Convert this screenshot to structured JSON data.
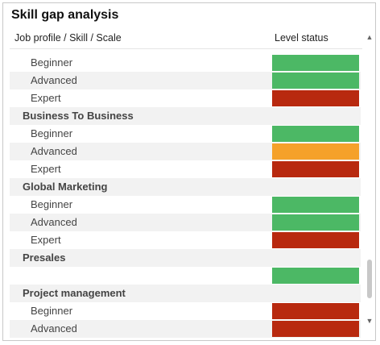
{
  "title": "Skill gap analysis",
  "columns": {
    "job": "Job profile / Skill / Scale",
    "level": "Level status"
  },
  "colors": {
    "green": "#4cb865",
    "orange": "#f5a12a",
    "red": "#b8290f"
  },
  "rows": [
    {
      "type": "skill",
      "label": "Beginner",
      "status": "green"
    },
    {
      "type": "skill",
      "label": "Advanced",
      "status": "green"
    },
    {
      "type": "skill",
      "label": "Expert",
      "status": "red"
    },
    {
      "type": "group",
      "label": "Business To Business",
      "status": null
    },
    {
      "type": "skill",
      "label": "Beginner",
      "status": "green"
    },
    {
      "type": "skill",
      "label": "Advanced",
      "status": "orange"
    },
    {
      "type": "skill",
      "label": "Expert",
      "status": "red"
    },
    {
      "type": "group",
      "label": "Global Marketing",
      "status": null
    },
    {
      "type": "skill",
      "label": "Beginner",
      "status": "green"
    },
    {
      "type": "skill",
      "label": "Advanced",
      "status": "green"
    },
    {
      "type": "skill",
      "label": "Expert",
      "status": "red"
    },
    {
      "type": "group",
      "label": "Presales",
      "status": null
    },
    {
      "type": "skill",
      "label": "",
      "status": "green"
    },
    {
      "type": "group",
      "label": "Project management",
      "status": null
    },
    {
      "type": "skill",
      "label": "Beginner",
      "status": "red"
    },
    {
      "type": "skill",
      "label": "Advanced",
      "status": "red"
    },
    {
      "type": "skill",
      "label": "",
      "status": "red"
    }
  ],
  "scrollbar": {
    "up_icon": "chevron-up-icon",
    "down_icon": "chevron-down-icon"
  }
}
